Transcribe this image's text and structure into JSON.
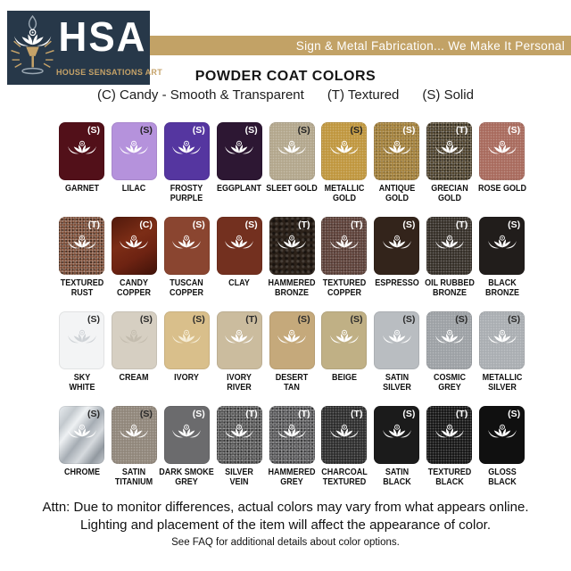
{
  "logo": {
    "acronym": "HSA",
    "subtitle": "HOUSE SENSATIONS ART",
    "navy": "#273849",
    "gold": "#c5a268"
  },
  "banner": {
    "text": "Sign & Metal Fabrication... We Make It Personal",
    "bg": "#c2a266"
  },
  "heading": {
    "title": "POWDER COAT COLORS",
    "legend": [
      "(C) Candy - Smooth & Transparent",
      "(T) Textured",
      "(S) Solid"
    ]
  },
  "swatches": [
    {
      "name": "GARNET",
      "letter": "(S)",
      "color": "#521019",
      "letter_color": "#ffffff",
      "icon_color": "#ffffff",
      "texture": "none"
    },
    {
      "name": "LILAC",
      "letter": "(S)",
      "color": "#b592dc",
      "letter_color": "#222222",
      "icon_color": "#ffffff",
      "texture": "none"
    },
    {
      "name": "FROSTY\nPURPLE",
      "letter": "(S)",
      "color": "#5536a0",
      "letter_color": "#ffffff",
      "icon_color": "#ffffff",
      "texture": "none"
    },
    {
      "name": "EGGPLANT",
      "letter": "(S)",
      "color": "#2d1733",
      "letter_color": "#ffffff",
      "icon_color": "#ffffff",
      "texture": "none"
    },
    {
      "name": "SLEET GOLD",
      "letter": "(S)",
      "color": "#b3a78d",
      "letter_color": "#222222",
      "icon_color": "#ffffff",
      "texture": "sparkle"
    },
    {
      "name": "METALLIC\nGOLD",
      "letter": "(S)",
      "color": "#c0973f",
      "letter_color": "#222222",
      "icon_color": "#ffffff",
      "texture": "sparkle"
    },
    {
      "name": "ANTIQUE\nGOLD",
      "letter": "(S)",
      "color": "#a5823d",
      "letter_color": "#ffffff",
      "icon_color": "#ffffff",
      "texture": "speckle"
    },
    {
      "name": "GRECIAN\nGOLD",
      "letter": "(T)",
      "color": "#4a3e27",
      "letter_color": "#ffffff",
      "icon_color": "#ffffff",
      "texture": "speckle-strong"
    },
    {
      "name": "ROSE GOLD",
      "letter": "(S)",
      "color": "#a96b5e",
      "letter_color": "#ffffff",
      "icon_color": "#ffffff",
      "texture": "sparkle"
    },
    {
      "name": "TEXTURED\nRUST",
      "letter": "(T)",
      "color": "#7b4a33",
      "letter_color": "#ffffff",
      "icon_color": "#ffffff",
      "texture": "speckle-strong"
    },
    {
      "name": "CANDY\nCOPPER",
      "letter": "(C)",
      "color": "#6e2817",
      "letter_color": "#ffffff",
      "icon_color": "#ffffff",
      "texture": "candy"
    },
    {
      "name": "TUSCAN\nCOPPER",
      "letter": "(S)",
      "color": "#8a4530",
      "letter_color": "#ffffff",
      "icon_color": "#ffffff",
      "texture": "none"
    },
    {
      "name": "CLAY",
      "letter": "(S)",
      "color": "#73301f",
      "letter_color": "#ffffff",
      "icon_color": "#ffffff",
      "texture": "none"
    },
    {
      "name": "HAMMERED\nBRONZE",
      "letter": "(T)",
      "color": "#2b2119",
      "letter_color": "#ffffff",
      "icon_color": "#ffffff",
      "texture": "hammered"
    },
    {
      "name": "TEXTURED\nCOPPER",
      "letter": "(T)",
      "color": "#5e423a",
      "letter_color": "#ffffff",
      "icon_color": "#ffffff",
      "texture": "speckle"
    },
    {
      "name": "ESPRESSO",
      "letter": "(S)",
      "color": "#33241b",
      "letter_color": "#ffffff",
      "icon_color": "#ffffff",
      "texture": "none"
    },
    {
      "name": "OIL RUBBED\nBRONZE",
      "letter": "(T)",
      "color": "#373029",
      "letter_color": "#ffffff",
      "icon_color": "#ffffff",
      "texture": "speckle"
    },
    {
      "name": "BLACK\nBRONZE",
      "letter": "(S)",
      "color": "#211d1b",
      "letter_color": "#ffffff",
      "icon_color": "#ffffff",
      "texture": "none"
    },
    {
      "name": "SKY\nWHITE",
      "letter": "(S)",
      "color": "#f3f4f5",
      "letter_color": "#2a2a2a",
      "icon_color": "#ced2d6",
      "texture": "none"
    },
    {
      "name": "CREAM",
      "letter": "(S)",
      "color": "#d6cfc2",
      "letter_color": "#2a2a2a",
      "icon_color": "#c3bcae",
      "texture": "none"
    },
    {
      "name": "IVORY",
      "letter": "(S)",
      "color": "#d9bf8b",
      "letter_color": "#2a2a2a",
      "icon_color": "#f6eed8",
      "texture": "none"
    },
    {
      "name": "IVORY\nRIVER",
      "letter": "(T)",
      "color": "#cbbc9e",
      "letter_color": "#2a2a2a",
      "icon_color": "#ffffff",
      "texture": "none"
    },
    {
      "name": "DESERT\nTAN",
      "letter": "(S)",
      "color": "#c5a97b",
      "letter_color": "#2a2a2a",
      "icon_color": "#ffffff",
      "texture": "none"
    },
    {
      "name": "BEIGE",
      "letter": "(S)",
      "color": "#c0b085",
      "letter_color": "#2a2a2a",
      "icon_color": "#ffffff",
      "texture": "none"
    },
    {
      "name": "SATIN\nSILVER",
      "letter": "(S)",
      "color": "#b9bdc1",
      "letter_color": "#2a2a2a",
      "icon_color": "#ffffff",
      "texture": "none"
    },
    {
      "name": "COSMIC\nGREY",
      "letter": "(S)",
      "color": "#9da1a5",
      "letter_color": "#2a2a2a",
      "icon_color": "#ffffff",
      "texture": "sparkle"
    },
    {
      "name": "METALLIC\nSILVER",
      "letter": "(S)",
      "color": "#aaaeb2",
      "letter_color": "#2a2a2a",
      "icon_color": "#ffffff",
      "texture": "sparkle"
    },
    {
      "name": "CHROME",
      "letter": "(S)",
      "color": "#bdc2c7",
      "letter_color": "#2a2a2a",
      "icon_color": "#ffffff",
      "texture": "chrome"
    },
    {
      "name": "SATIN\nTITANIUM",
      "letter": "(S)",
      "color": "#91877b",
      "letter_color": "#2a2a2a",
      "icon_color": "#ffffff",
      "texture": "sparkle"
    },
    {
      "name": "DARK SMOKE\nGREY",
      "letter": "(S)",
      "color": "#6b6b6d",
      "letter_color": "#ffffff",
      "icon_color": "#ffffff",
      "texture": "none"
    },
    {
      "name": "SILVER\nVEIN",
      "letter": "(T)",
      "color": "#565656",
      "letter_color": "#ffffff",
      "icon_color": "#ffffff",
      "texture": "speckle-strong"
    },
    {
      "name": "HAMMERED\nGREY",
      "letter": "(T)",
      "color": "#59595b",
      "letter_color": "#ffffff",
      "icon_color": "#ffffff",
      "texture": "speckle-strong"
    },
    {
      "name": "CHARCOAL\nTEXTURED",
      "letter": "(T)",
      "color": "#2e2e2e",
      "letter_color": "#ffffff",
      "icon_color": "#ffffff",
      "texture": "speckle"
    },
    {
      "name": "SATIN\nBLACK",
      "letter": "(S)",
      "color": "#1b1b1b",
      "letter_color": "#ffffff",
      "icon_color": "#ffffff",
      "texture": "none"
    },
    {
      "name": "TEXTURED\nBLACK",
      "letter": "(T)",
      "color": "#171717",
      "letter_color": "#ffffff",
      "icon_color": "#ffffff",
      "texture": "speckle"
    },
    {
      "name": "GLOSS\nBLACK",
      "letter": "(S)",
      "color": "#101010",
      "letter_color": "#ffffff",
      "icon_color": "#ffffff",
      "texture": "none"
    }
  ],
  "footer": {
    "attn_line1": "Attn: Due to monitor differences, actual colors may vary from what appears online.",
    "attn_line2": "Lighting and placement of the item will affect the appearance of color.",
    "faq": "See FAQ for additional details about color options."
  }
}
